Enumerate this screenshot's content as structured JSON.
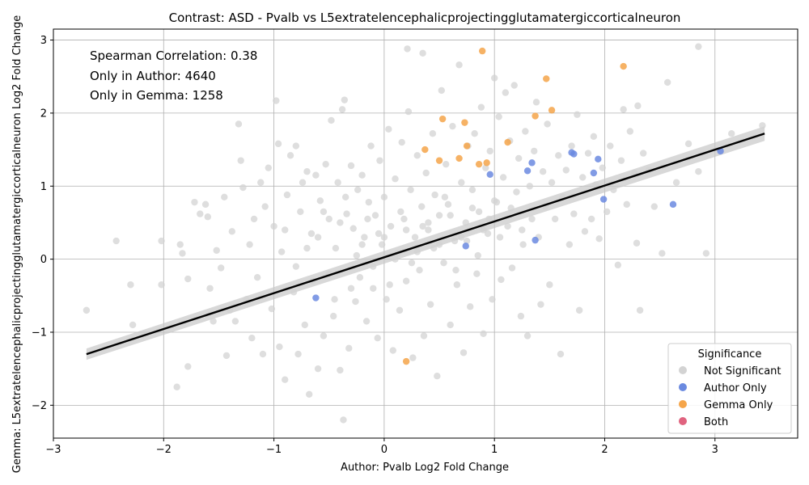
{
  "chart_data": {
    "type": "scatter",
    "title": "Contrast: ASD - Pvalb vs L5extratelencephalicprojectingglutamatergiccorticalneuron",
    "xlabel": "Author: Pvalb Log2 Fold Change",
    "ylabel": "Gemma: L5extratelencephalicprojectingglutamatergiccorticalneuron Log2 Fold Change",
    "xlim": [
      -3,
      3.75
    ],
    "ylim": [
      -2.45,
      3.15
    ],
    "xticks": [
      -3,
      -2,
      -1,
      0,
      1,
      2,
      3
    ],
    "yticks": [
      -2,
      -1,
      0,
      1,
      2,
      3
    ],
    "grid": true,
    "annotations": [
      "Spearman Correlation: 0.38",
      "Only in Author: 4640",
      "Only in Gemma: 1258"
    ],
    "legend": {
      "title": "Significance",
      "placement": "lower-right",
      "entries": [
        {
          "label": "Not Significant",
          "color": "#d3d3d3"
        },
        {
          "label": "Author Only",
          "color": "#6b8ae0"
        },
        {
          "label": "Gemma Only",
          "color": "#f5a54a"
        },
        {
          "label": "Both",
          "color": "#e0637f"
        }
      ]
    },
    "regression_line": {
      "x": [
        -2.7,
        3.45
      ],
      "y": [
        -1.3,
        1.72
      ]
    },
    "series": [
      {
        "name": "Not Significant",
        "color": "#d3d3d3",
        "points": [
          [
            -2.7,
            -0.7
          ],
          [
            -2.43,
            0.25
          ],
          [
            -2.3,
            -0.35
          ],
          [
            -2.28,
            -0.9
          ],
          [
            -2.02,
            0.25
          ],
          [
            -2.02,
            -0.35
          ],
          [
            -1.88,
            -1.75
          ],
          [
            -1.85,
            0.2
          ],
          [
            -1.83,
            0.08
          ],
          [
            -1.78,
            -0.27
          ],
          [
            -1.78,
            -1.47
          ],
          [
            -1.72,
            0.78
          ],
          [
            -1.67,
            0.62
          ],
          [
            -1.62,
            0.75
          ],
          [
            -1.6,
            0.58
          ],
          [
            -1.58,
            -0.4
          ],
          [
            -1.55,
            -0.85
          ],
          [
            -1.52,
            0.12
          ],
          [
            -1.48,
            -0.12
          ],
          [
            -1.45,
            0.85
          ],
          [
            -1.43,
            -1.32
          ],
          [
            -1.4,
            -0.7
          ],
          [
            -1.38,
            0.38
          ],
          [
            -1.35,
            -0.85
          ],
          [
            -1.32,
            1.85
          ],
          [
            -1.3,
            1.35
          ],
          [
            -1.28,
            0.98
          ],
          [
            -1.25,
            -0.55
          ],
          [
            -1.22,
            0.2
          ],
          [
            -1.2,
            -1.08
          ],
          [
            -1.18,
            0.55
          ],
          [
            -1.15,
            -0.25
          ],
          [
            -1.12,
            1.05
          ],
          [
            -1.1,
            -1.3
          ],
          [
            -1.08,
            0.72
          ],
          [
            -1.05,
            1.25
          ],
          [
            -1.02,
            -0.68
          ],
          [
            -1.0,
            0.45
          ],
          [
            -0.98,
            2.17
          ],
          [
            -0.96,
            1.58
          ],
          [
            -0.95,
            -1.2
          ],
          [
            -0.93,
            0.1
          ],
          [
            -0.9,
            -1.65
          ],
          [
            -0.88,
            0.88
          ],
          [
            -0.85,
            1.42
          ],
          [
            -0.82,
            -0.45
          ],
          [
            -0.8,
            1.55
          ],
          [
            -0.78,
            -1.3
          ],
          [
            -0.76,
            0.65
          ],
          [
            -0.74,
            1.05
          ],
          [
            -0.72,
            -0.9
          ],
          [
            -0.7,
            1.2
          ],
          [
            -0.68,
            -1.85
          ],
          [
            -0.66,
            0.35
          ],
          [
            -0.65,
            -0.3
          ],
          [
            -0.62,
            1.15
          ],
          [
            -0.6,
            -1.5
          ],
          [
            -0.58,
            0.8
          ],
          [
            -0.55,
            -1.05
          ],
          [
            -0.53,
            1.3
          ],
          [
            -0.5,
            0.55
          ],
          [
            -0.48,
            1.9
          ],
          [
            -0.46,
            -0.78
          ],
          [
            -0.44,
            0.15
          ],
          [
            -0.42,
            1.05
          ],
          [
            -0.4,
            -1.52
          ],
          [
            -0.38,
            2.05
          ],
          [
            -0.37,
            -2.2
          ],
          [
            -0.36,
            2.18
          ],
          [
            -0.34,
            0.62
          ],
          [
            -0.32,
            -1.22
          ],
          [
            -0.3,
            1.28
          ],
          [
            -0.28,
            0.42
          ],
          [
            -0.26,
            -0.58
          ],
          [
            -0.24,
            0.95
          ],
          [
            -0.22,
            -0.25
          ],
          [
            -0.2,
            1.15
          ],
          [
            -0.18,
            0.3
          ],
          [
            -0.16,
            -0.85
          ],
          [
            -0.14,
            0.78
          ],
          [
            -0.12,
            1.55
          ],
          [
            -0.1,
            -0.4
          ],
          [
            -0.08,
            0.6
          ],
          [
            -0.06,
            -1.08
          ],
          [
            -0.04,
            1.35
          ],
          [
            -0.02,
            0.2
          ],
          [
            0.0,
            0.85
          ],
          [
            0.02,
            -0.55
          ],
          [
            0.04,
            1.78
          ],
          [
            0.06,
            0.45
          ],
          [
            0.08,
            -1.25
          ],
          [
            0.1,
            1.1
          ],
          [
            0.12,
            0.08
          ],
          [
            0.14,
            -0.7
          ],
          [
            0.16,
            1.6
          ],
          [
            0.18,
            0.55
          ],
          [
            0.2,
            -0.3
          ],
          [
            0.21,
            2.88
          ],
          [
            0.22,
            2.02
          ],
          [
            0.24,
            0.95
          ],
          [
            0.26,
            -1.35
          ],
          [
            0.28,
            0.3
          ],
          [
            0.3,
            1.42
          ],
          [
            0.32,
            -0.15
          ],
          [
            0.34,
            0.72
          ],
          [
            0.35,
            2.82
          ],
          [
            0.36,
            -1.05
          ],
          [
            0.38,
            1.18
          ],
          [
            0.4,
            0.4
          ],
          [
            0.42,
            -0.62
          ],
          [
            0.44,
            1.72
          ],
          [
            0.46,
            0.88
          ],
          [
            0.48,
            -1.6
          ],
          [
            0.5,
            0.6
          ],
          [
            0.52,
            2.31
          ],
          [
            0.54,
            -0.05
          ],
          [
            0.56,
            1.3
          ],
          [
            0.58,
            0.75
          ],
          [
            0.6,
            -0.9
          ],
          [
            0.62,
            1.82
          ],
          [
            0.64,
            0.25
          ],
          [
            0.66,
            -0.35
          ],
          [
            0.68,
            2.66
          ],
          [
            0.7,
            1.05
          ],
          [
            0.72,
            -1.28
          ],
          [
            0.74,
            0.5
          ],
          [
            0.76,
            1.55
          ],
          [
            0.78,
            -0.65
          ],
          [
            0.8,
            0.95
          ],
          [
            0.82,
            1.72
          ],
          [
            0.84,
            -0.2
          ],
          [
            0.86,
            0.65
          ],
          [
            0.88,
            2.08
          ],
          [
            0.9,
            -1.02
          ],
          [
            0.92,
            1.25
          ],
          [
            0.94,
            0.35
          ],
          [
            0.96,
            1.48
          ],
          [
            0.98,
            -0.55
          ],
          [
            1.0,
            2.48
          ],
          [
            1.02,
            0.78
          ],
          [
            1.04,
            1.95
          ],
          [
            1.06,
            -0.28
          ],
          [
            1.08,
            1.12
          ],
          [
            1.1,
            2.28
          ],
          [
            1.12,
            0.45
          ],
          [
            1.14,
            1.62
          ],
          [
            1.16,
            -0.12
          ],
          [
            1.18,
            2.38
          ],
          [
            1.2,
            0.92
          ],
          [
            1.22,
            1.38
          ],
          [
            1.24,
            -0.78
          ],
          [
            1.26,
            0.2
          ],
          [
            1.28,
            1.75
          ],
          [
            1.3,
            -1.05
          ],
          [
            1.32,
            1.0
          ],
          [
            1.34,
            0.55
          ],
          [
            1.36,
            1.48
          ],
          [
            1.38,
            2.15
          ],
          [
            1.4,
            0.3
          ],
          [
            1.42,
            -0.62
          ],
          [
            1.44,
            1.2
          ],
          [
            1.46,
            0.72
          ],
          [
            1.48,
            1.85
          ],
          [
            1.5,
            -0.35
          ],
          [
            1.52,
            1.05
          ],
          [
            1.55,
            0.55
          ],
          [
            1.58,
            1.42
          ],
          [
            1.6,
            -1.3
          ],
          [
            1.62,
            0.85
          ],
          [
            1.65,
            1.22
          ],
          [
            1.68,
            0.2
          ],
          [
            1.7,
            1.55
          ],
          [
            1.72,
            0.62
          ],
          [
            1.75,
            1.98
          ],
          [
            1.77,
            -0.7
          ],
          [
            1.8,
            1.12
          ],
          [
            1.82,
            0.38
          ],
          [
            1.85,
            1.45
          ],
          [
            1.88,
            0.55
          ],
          [
            1.9,
            1.68
          ],
          [
            1.92,
            1.02
          ],
          [
            1.95,
            0.28
          ],
          [
            1.98,
            1.25
          ],
          [
            2.02,
            0.65
          ],
          [
            2.05,
            1.55
          ],
          [
            2.08,
            0.95
          ],
          [
            2.12,
            -0.08
          ],
          [
            2.15,
            1.35
          ],
          [
            2.17,
            2.05
          ],
          [
            2.2,
            0.75
          ],
          [
            2.23,
            1.75
          ],
          [
            2.27,
            1.18
          ],
          [
            2.29,
            0.22
          ],
          [
            2.3,
            2.1
          ],
          [
            2.32,
            -0.7
          ],
          [
            2.35,
            1.45
          ],
          [
            2.4,
            1.22
          ],
          [
            2.45,
            0.72
          ],
          [
            2.52,
            0.08
          ],
          [
            2.57,
            2.42
          ],
          [
            2.65,
            1.05
          ],
          [
            2.76,
            1.58
          ],
          [
            2.85,
            1.2
          ],
          [
            2.85,
            2.91
          ],
          [
            2.92,
            0.08
          ],
          [
            3.15,
            1.72
          ],
          [
            3.43,
            1.83
          ],
          [
            -0.6,
            0.3
          ],
          [
            -0.5,
            -0.2
          ],
          [
            -0.4,
            0.5
          ],
          [
            -0.3,
            -0.4
          ],
          [
            -0.2,
            0.2
          ],
          [
            -0.1,
            -0.1
          ],
          [
            0.0,
            0.3
          ],
          [
            0.1,
            0.0
          ],
          [
            0.2,
            0.4
          ],
          [
            0.3,
            0.1
          ],
          [
            0.4,
            0.5
          ],
          [
            0.5,
            0.2
          ],
          [
            0.6,
            0.6
          ],
          [
            0.7,
            0.3
          ],
          [
            0.8,
            0.7
          ],
          [
            0.9,
            0.4
          ],
          [
            1.0,
            0.8
          ],
          [
            -0.8,
            -0.1
          ],
          [
            -0.7,
            0.15
          ],
          [
            -0.9,
            0.4
          ],
          [
            -0.55,
            0.65
          ],
          [
            -0.45,
            -0.55
          ],
          [
            -0.35,
            0.85
          ],
          [
            -0.25,
            0.05
          ],
          [
            -0.15,
            0.55
          ],
          [
            -0.05,
            0.35
          ],
          [
            0.05,
            -0.35
          ],
          [
            0.15,
            0.65
          ],
          [
            0.25,
            -0.05
          ],
          [
            0.35,
            0.45
          ],
          [
            0.45,
            0.15
          ],
          [
            0.55,
            0.85
          ],
          [
            0.65,
            -0.15
          ],
          [
            0.75,
            0.25
          ],
          [
            0.85,
            0.05
          ],
          [
            0.95,
            0.55
          ],
          [
            1.05,
            0.3
          ],
          [
            1.15,
            0.7
          ],
          [
            1.25,
            0.4
          ]
        ]
      },
      {
        "name": "Author Only",
        "color": "#6b8ae0",
        "points": [
          [
            3.05,
            1.48
          ],
          [
            2.62,
            0.75
          ],
          [
            1.99,
            0.82
          ],
          [
            1.94,
            1.37
          ],
          [
            1.9,
            1.18
          ],
          [
            1.72,
            1.44
          ],
          [
            1.7,
            1.46
          ],
          [
            1.37,
            0.26
          ],
          [
            1.34,
            1.32
          ],
          [
            1.3,
            1.21
          ],
          [
            0.96,
            1.16
          ],
          [
            0.74,
            0.18
          ],
          [
            -0.62,
            -0.53
          ]
        ]
      },
      {
        "name": "Gemma Only",
        "color": "#f5a54a",
        "points": [
          [
            0.89,
            2.85
          ],
          [
            2.17,
            2.64
          ],
          [
            1.47,
            2.47
          ],
          [
            1.52,
            2.04
          ],
          [
            1.37,
            1.96
          ],
          [
            0.53,
            1.92
          ],
          [
            0.73,
            1.87
          ],
          [
            1.12,
            1.6
          ],
          [
            0.75,
            1.55
          ],
          [
            0.37,
            1.5
          ],
          [
            0.5,
            1.35
          ],
          [
            0.68,
            1.38
          ],
          [
            0.86,
            1.3
          ],
          [
            0.93,
            1.32
          ],
          [
            0.2,
            -1.4
          ]
        ]
      },
      {
        "name": "Both",
        "color": "#e0637f",
        "points": []
      }
    ]
  }
}
